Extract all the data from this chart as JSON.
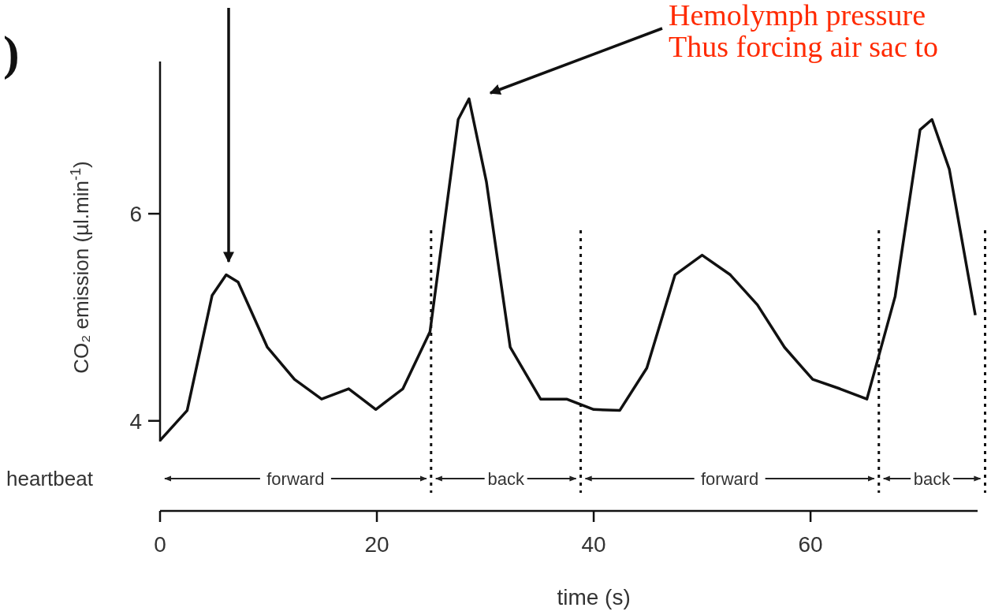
{
  "chart_data": {
    "type": "line",
    "xlabel": "time (s)",
    "ylabel": "CO₂ emission (µl.min$^{-1}$)",
    "x": [
      0,
      2.5,
      4.8,
      6.1,
      7.2,
      9.9,
      12.4,
      14.9,
      17.4,
      19.9,
      22.4,
      24.9,
      27.5,
      28.5,
      30.1,
      32.3,
      35.1,
      37.5,
      40,
      42.4,
      44.9,
      47.5,
      50,
      52.6,
      55.1,
      57.6,
      60.2,
      62.7,
      65.2,
      67.8,
      70.1,
      71.2,
      72.8,
      75.2
    ],
    "series": [
      {
        "color": "#111111",
        "values": [
          3.81,
          4.1,
          5.21,
          5.41,
          5.34,
          4.71,
          4.4,
          4.21,
          4.31,
          4.11,
          4.31,
          4.86,
          6.91,
          7.11,
          6.31,
          4.71,
          4.21,
          4.21,
          4.11,
          4.1,
          4.51,
          5.41,
          5.6,
          5.41,
          5.12,
          4.71,
          4.4,
          4.31,
          4.21,
          5.2,
          6.81,
          6.91,
          6.43,
          5.02
        ]
      }
    ],
    "xlim": [
      0,
      76.5
    ],
    "ylim": [
      3.8,
      7.47
    ],
    "xticks": [
      0,
      20,
      40,
      60
    ],
    "yticks": [
      4,
      6
    ],
    "ref_lines": [
      {
        "axis": "x",
        "value": 25,
        "line_style": "dotted"
      },
      {
        "axis": "x",
        "value": 38.8,
        "line_style": "dotted"
      },
      {
        "axis": "x",
        "value": 66.3,
        "line_style": "dotted"
      },
      {
        "axis": "x",
        "value": 76.1,
        "line_style": "dotted"
      }
    ],
    "annotations": [
      "heartbeat",
      "Hemolymph pressure",
      ")",
      "Thus forcing air sac to",
      "forward",
      "back",
      "forward",
      "back"
    ],
    "marker": "none",
    "line_style": "solid"
  }
}
